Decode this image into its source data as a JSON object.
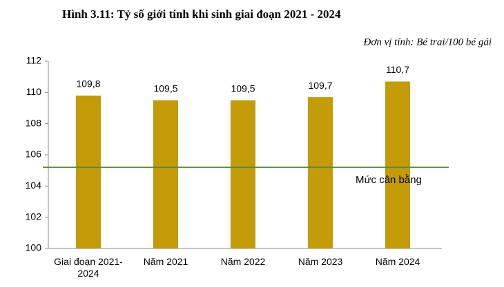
{
  "chart_data": {
    "type": "bar",
    "title": "Hình 3.11: Tỷ số giới tính khi sinh giai đoạn 2021 - 2024",
    "subtitle": "Đơn vị tính: Bé trai/100 bé gái",
    "categories": [
      "Giai đoạn 2021-2024",
      "Năm 2021",
      "Năm 2022",
      "Năm 2023",
      "Năm 2024"
    ],
    "values": [
      109.8,
      109.5,
      109.5,
      109.7,
      110.7
    ],
    "value_labels": [
      "109,8",
      "109,5",
      "109,5",
      "109,7",
      "110,7"
    ],
    "color": "#c39a08",
    "ylim": [
      100,
      112
    ],
    "yticks": [
      100,
      102,
      104,
      106,
      108,
      110,
      112
    ],
    "reference_line": {
      "value": 105.2,
      "label": "Mức cân bằng",
      "color": "#5e8b3c"
    }
  }
}
